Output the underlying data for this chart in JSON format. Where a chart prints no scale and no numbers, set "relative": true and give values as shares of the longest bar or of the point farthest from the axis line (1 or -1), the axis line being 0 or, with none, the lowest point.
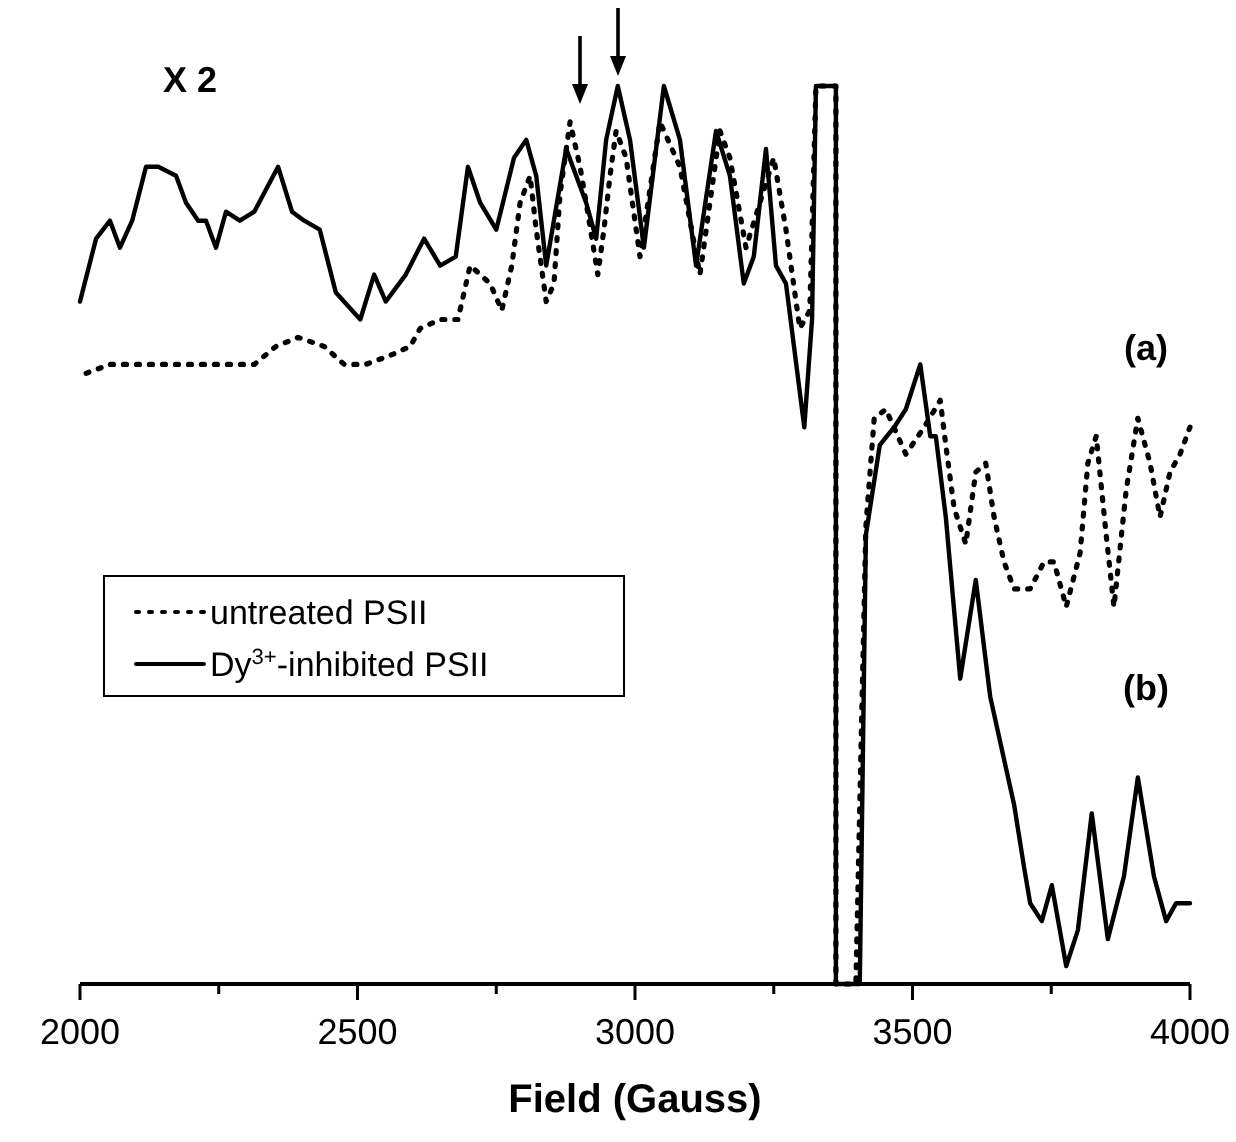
{
  "chart_data": {
    "type": "line",
    "relative": true,
    "xlabel": "Field (Gauss)",
    "xlim": [
      2000,
      4000
    ],
    "xticks": [
      2000,
      {
        "value": 2250,
        "label": null
      },
      2500,
      {
        "value": 2750,
        "label": null
      },
      3000,
      {
        "value": 3250,
        "label": null
      },
      3500,
      {
        "value": 3750,
        "label": null
      },
      4000
    ],
    "legend": "left",
    "grid": false,
    "marker": "none",
    "annotations": [
      "X 2",
      "(a)",
      "(b)"
    ],
    "series": [
      {
        "name": "untreated PSII",
        "color": "#000000",
        "line_style": "dotted",
        "x": [
          2011,
          2054,
          2097,
          2144,
          2187,
          2227,
          2270,
          2314,
          2353,
          2393,
          2440,
          2476,
          2515,
          2559,
          2595,
          2613,
          2649,
          2681,
          2703,
          2739,
          2760,
          2778,
          2793,
          2811,
          2822,
          2840,
          2854,
          2865,
          2883,
          2901,
          2912,
          2933,
          2944,
          2955,
          2966,
          2984,
          3009,
          3045,
          3081,
          3117,
          3153,
          3171,
          3200,
          3250,
          3272,
          3297,
          3315,
          3326,
          3362,
          3362,
          3398,
          3416,
          3431,
          3452,
          3488,
          3521,
          3550,
          3560,
          3575,
          3596,
          3614,
          3632,
          3647,
          3665,
          3683,
          3712,
          3737,
          3755,
          3777,
          3802,
          3816,
          3831,
          3849,
          3863,
          3885,
          3906,
          3928,
          3946,
          3964,
          3982,
          4000
        ],
        "values": [
          0.68,
          0.69,
          0.69,
          0.69,
          0.69,
          0.69,
          0.69,
          0.69,
          0.71,
          0.72,
          0.71,
          0.69,
          0.69,
          0.7,
          0.71,
          0.73,
          0.74,
          0.74,
          0.8,
          0.78,
          0.75,
          0.8,
          0.87,
          0.9,
          0.84,
          0.76,
          0.78,
          0.88,
          0.96,
          0.91,
          0.87,
          0.79,
          0.84,
          0.9,
          0.95,
          0.92,
          0.81,
          0.96,
          0.91,
          0.79,
          0.95,
          0.92,
          0.82,
          0.92,
          0.84,
          0.73,
          0.75,
          1.0,
          1.0,
          0,
          0,
          0.51,
          0.63,
          0.64,
          0.59,
          0.62,
          0.65,
          0.6,
          0.53,
          0.49,
          0.57,
          0.58,
          0.52,
          0.47,
          0.44,
          0.44,
          0.47,
          0.47,
          0.42,
          0.48,
          0.58,
          0.61,
          0.5,
          0.42,
          0.55,
          0.63,
          0.58,
          0.52,
          0.57,
          0.59,
          0.62
        ]
      },
      {
        "name": "Dy$^{3+}$-inhibited PSII",
        "color": "#000000",
        "line_style": "solid",
        "x": [
          2000,
          2029,
          2054,
          2072,
          2094,
          2119,
          2141,
          2173,
          2191,
          2213,
          2227,
          2245,
          2263,
          2288,
          2314,
          2357,
          2382,
          2404,
          2432,
          2461,
          2505,
          2530,
          2551,
          2587,
          2620,
          2649,
          2677,
          2699,
          2721,
          2750,
          2782,
          2804,
          2822,
          2840,
          2876,
          2912,
          2930,
          2948,
          2969,
          2991,
          3016,
          3052,
          3081,
          3110,
          3146,
          3171,
          3196,
          3214,
          3236,
          3254,
          3272,
          3305,
          3319,
          3326,
          3362,
          3362,
          3405,
          3416,
          3441,
          3467,
          3488,
          3514,
          3532,
          3542,
          3560,
          3586,
          3614,
          3640,
          3665,
          3683,
          3701,
          3712,
          3733,
          3751,
          3777,
          3798,
          3823,
          3852,
          3881,
          3906,
          3935,
          3957,
          3975,
          4000
        ],
        "values": [
          0.76,
          0.83,
          0.85,
          0.82,
          0.85,
          0.91,
          0.91,
          0.9,
          0.87,
          0.85,
          0.85,
          0.82,
          0.86,
          0.85,
          0.86,
          0.91,
          0.86,
          0.85,
          0.84,
          0.77,
          0.74,
          0.79,
          0.76,
          0.79,
          0.83,
          0.8,
          0.81,
          0.91,
          0.87,
          0.84,
          0.92,
          0.94,
          0.9,
          0.8,
          0.93,
          0.87,
          0.83,
          0.94,
          1.0,
          0.94,
          0.82,
          1.0,
          0.94,
          0.8,
          0.95,
          0.9,
          0.78,
          0.81,
          0.93,
          0.8,
          0.78,
          0.62,
          0.74,
          1.0,
          1.0,
          0,
          0,
          0.5,
          0.6,
          0.62,
          0.64,
          0.69,
          0.61,
          0.61,
          0.52,
          0.34,
          0.45,
          0.32,
          0.25,
          0.2,
          0.13,
          0.09,
          0.07,
          0.11,
          0.02,
          0.06,
          0.19,
          0.05,
          0.12,
          0.23,
          0.12,
          0.07,
          0.09,
          0.09
        ]
      }
    ]
  }
}
